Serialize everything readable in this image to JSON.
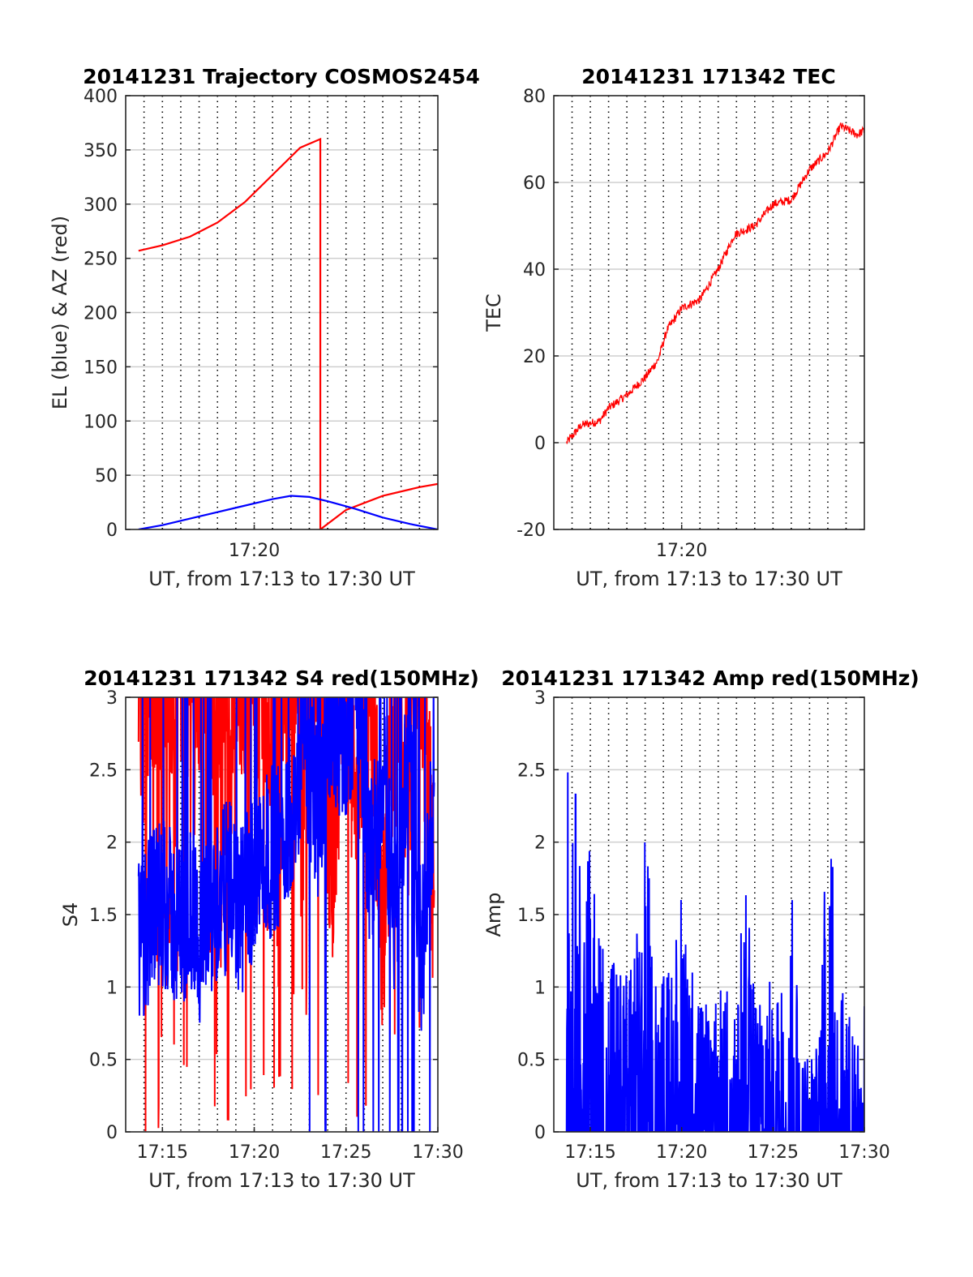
{
  "figure": {
    "colors": {
      "red": "#ff0000",
      "blue": "#0000ff",
      "grid": "#cfcfcf",
      "axis": "#262626"
    }
  },
  "chart_data": [
    {
      "type": "line",
      "title": "20141231 Trajectory COSMOS2454",
      "xlabel": "UT, from 17:13 to 17:30 UT",
      "ylabel": "EL (blue) & AZ (red)",
      "xlim": [
        "17:13:00",
        "17:30:00"
      ],
      "ylim": [
        0,
        400
      ],
      "yticks": [
        "0",
        "50",
        "100",
        "150",
        "200",
        "250",
        "300",
        "350",
        "400"
      ],
      "xticks": [
        "17:20"
      ],
      "grid": true,
      "series": [
        {
          "color": "#ff0000",
          "x": [
            "17:13:42",
            "17:15:00",
            "17:16:30",
            "17:18:00",
            "17:19:30",
            "17:21:00",
            "17:22:30",
            "17:23:36",
            "17:23:36",
            "17:25:00",
            "17:27:00",
            "17:29:00",
            "17:30:00"
          ],
          "y": [
            257,
            262,
            270,
            283,
            302,
            327,
            352,
            360,
            0,
            18,
            31,
            39,
            42
          ]
        },
        {
          "color": "#0000ff",
          "x": [
            "17:13:42",
            "17:15:00",
            "17:17:00",
            "17:19:00",
            "17:21:00",
            "17:22:00",
            "17:23:00",
            "17:24:00",
            "17:25:30",
            "17:27:00",
            "17:28:30",
            "17:30:00"
          ],
          "y": [
            0,
            4,
            12,
            20,
            28,
            31,
            30,
            26,
            19,
            11,
            5,
            0
          ]
        }
      ]
    },
    {
      "type": "line",
      "title": "20141231 171342 TEC",
      "xlabel": "UT, from 17:13 to 17:30 UT",
      "ylabel": "TEC",
      "xlim": [
        "17:13:00",
        "17:30:00"
      ],
      "ylim": [
        -20,
        80
      ],
      "yticks": [
        "-20",
        "0",
        "20",
        "40",
        "60",
        "80"
      ],
      "xticks": [
        "17:20"
      ],
      "grid": true,
      "series": [
        {
          "color": "#ff0000",
          "x": [
            "17:13:42",
            "17:14:30",
            "17:15:30",
            "17:16:00",
            "17:17:00",
            "17:18:00",
            "17:18:42",
            "17:19:12",
            "17:20:00",
            "17:21:00",
            "17:22:00",
            "17:22:54",
            "17:24:00",
            "17:25:00",
            "17:26:00",
            "17:27:00",
            "17:28:00",
            "17:28:42",
            "17:29:36",
            "17:30:00"
          ],
          "y": [
            0,
            4,
            5,
            8,
            11,
            15,
            19,
            26,
            31,
            33,
            40,
            48,
            50,
            55,
            56,
            63,
            67,
            73,
            71,
            72
          ]
        }
      ]
    },
    {
      "type": "line",
      "title": "20141231 171342 S4 red(150MHz)",
      "xlabel": "UT, from 17:13 to 17:30 UT",
      "ylabel": "S4",
      "xlim": [
        "17:13:00",
        "17:30:00"
      ],
      "ylim": [
        0,
        3
      ],
      "yticks": [
        "0",
        "0.5",
        "1",
        "1.5",
        "2",
        "2.5",
        "3"
      ],
      "xticks": [
        "17:15",
        "17:20",
        "17:25",
        "17:30"
      ],
      "grid": true,
      "series": [
        {
          "color": "#ff0000",
          "x": [
            "17:13:42",
            "17:14:24",
            "17:15:06",
            "17:15:48",
            "17:16:30",
            "17:17:12",
            "17:17:54",
            "17:18:36",
            "17:19:18",
            "17:20:00",
            "17:20:42",
            "17:21:24",
            "17:22:06",
            "17:22:48",
            "17:23:30",
            "17:24:12",
            "17:24:54",
            "17:25:36",
            "17:26:18",
            "17:27:00",
            "17:27:42",
            "17:28:24",
            "17:29:06",
            "17:29:48"
          ],
          "y": [
            2.6,
            3.0,
            2.8,
            3.0,
            2.9,
            3.0,
            2.7,
            3.0,
            2.8,
            2.9,
            2.4,
            2.7,
            3.0,
            2.9,
            3.0,
            1.5,
            3.0,
            2.2,
            3.0,
            1.0,
            3.0,
            2.0,
            3.0,
            1.2
          ]
        },
        {
          "color": "#0000ff",
          "x": [
            "17:13:42",
            "17:14:24",
            "17:15:06",
            "17:15:48",
            "17:16:30",
            "17:17:12",
            "17:17:54",
            "17:18:36",
            "17:19:18",
            "17:20:00",
            "17:20:42",
            "17:21:24",
            "17:22:06",
            "17:22:48",
            "17:23:30",
            "17:24:12",
            "17:24:54",
            "17:25:36",
            "17:26:18",
            "17:27:00",
            "17:27:42",
            "17:28:24",
            "17:29:06",
            "17:29:48"
          ],
          "y": [
            1.3,
            1.5,
            1.6,
            1.4,
            1.5,
            1.3,
            1.6,
            1.7,
            1.5,
            1.8,
            1.9,
            2.0,
            2.3,
            2.6,
            2.2,
            2.9,
            2.7,
            3.0,
            1.8,
            2.5,
            1.4,
            2.8,
            1.1,
            2.4
          ]
        }
      ]
    },
    {
      "type": "line",
      "title": "20141231 171342 Amp red(150MHz)",
      "xlabel": "UT, from 17:13 to 17:30 UT",
      "ylabel": "Amp",
      "xlim": [
        "17:13:00",
        "17:30:00"
      ],
      "ylim": [
        0,
        3
      ],
      "yticks": [
        "0",
        "0.5",
        "1",
        "1.5",
        "2",
        "2.5",
        "3"
      ],
      "xticks": [
        "17:15",
        "17:20",
        "17:25",
        "17:30"
      ],
      "grid": true,
      "series": [
        {
          "color": "#0000ff",
          "x": [
            "17:13:42",
            "17:14:00",
            "17:14:30",
            "17:15:00",
            "17:15:30",
            "17:16:00",
            "17:16:30",
            "17:17:00",
            "17:17:30",
            "17:18:00",
            "17:18:30",
            "17:19:00",
            "17:19:30",
            "17:20:00",
            "17:20:30",
            "17:21:00",
            "17:21:30",
            "17:22:00",
            "17:22:30",
            "17:23:00",
            "17:23:30",
            "17:24:00",
            "17:24:30",
            "17:25:00",
            "17:25:30",
            "17:26:00",
            "17:26:30",
            "17:27:00",
            "17:27:30",
            "17:28:00",
            "17:28:30",
            "17:29:00",
            "17:29:30",
            "17:30:00"
          ],
          "y": [
            2.6,
            2.3,
            2.6,
            1.9,
            1.5,
            1.3,
            1.2,
            1.1,
            1.3,
            2.2,
            1.2,
            1.1,
            1.2,
            1.7,
            1.2,
            1.0,
            0.9,
            1.0,
            1.1,
            0.9,
            1.9,
            1.0,
            0.8,
            1.2,
            1.5,
            2.0,
            0.7,
            0.6,
            0.6,
            2.3,
            1.6,
            0.9,
            0.7,
            0.9
          ]
        }
      ]
    }
  ]
}
